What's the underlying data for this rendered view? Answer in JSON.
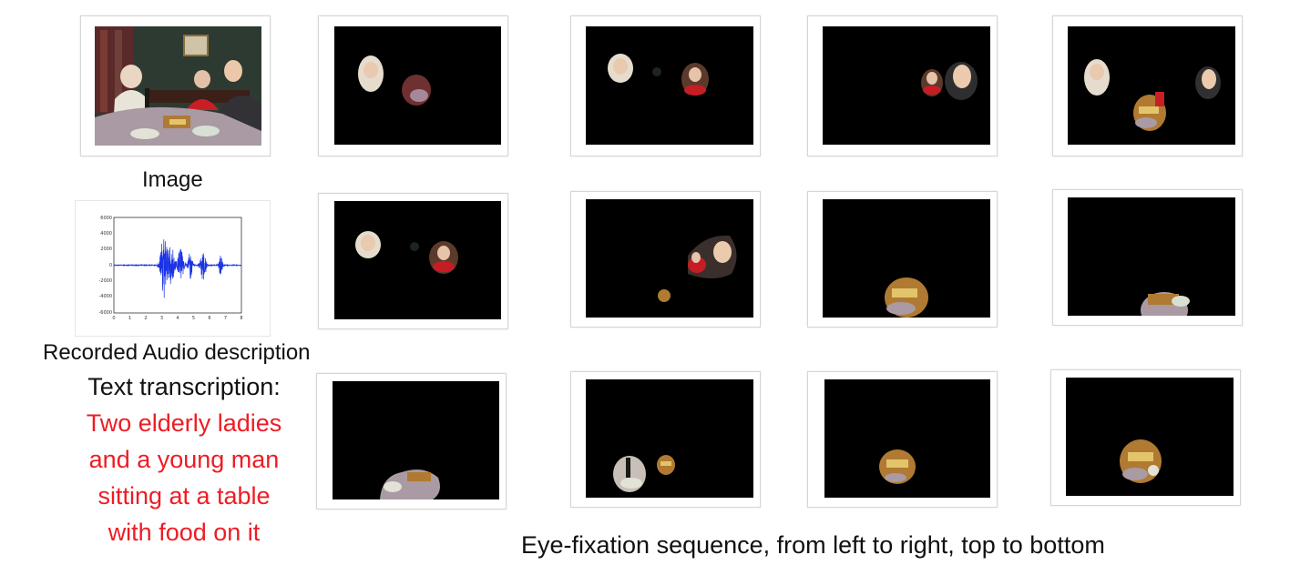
{
  "labels": {
    "image_caption": "Image",
    "audio_caption": "Recorded Audio description",
    "transcription_label": "Text transcription:",
    "transcription_lines": [
      "Two elderly ladies",
      "and a young man",
      "sitting at a table",
      "with food on it"
    ],
    "sequence_caption": "Eye-fixation sequence, from left to right, top to bottom"
  },
  "waveform": {
    "y_ticks": [
      "6000",
      "4000",
      "2000",
      "0",
      "-2000",
      "-4000",
      "-6000"
    ],
    "x_ticks": [
      "0",
      "1",
      "2",
      "3",
      "4",
      "5",
      "6",
      "7",
      "8"
    ],
    "line_color": "#1a33e6"
  },
  "colors": {
    "transcription_text": "#ee1c25",
    "fixation_background": "#000000"
  }
}
